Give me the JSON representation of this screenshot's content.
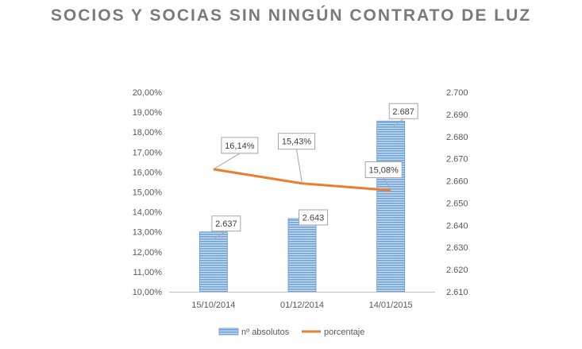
{
  "chart_data": {
    "type": "bar",
    "title": "SOCIOS Y SOCIAS SIN NINGÚN CONTRATO DE LUZ",
    "categories": [
      "15/10/2014",
      "01/12/2014",
      "14/01/2015"
    ],
    "series": [
      {
        "name": "nº absolutos",
        "kind": "bar",
        "axis": "right",
        "values": [
          2637,
          2643,
          2687
        ],
        "labels": [
          "2.637",
          "2.643",
          "2.687"
        ],
        "color": "#7fb0de"
      },
      {
        "name": "porcentaje",
        "kind": "line",
        "axis": "left",
        "values": [
          16.14,
          15.43,
          15.08
        ],
        "labels": [
          "16,14%",
          "15,43%",
          "15,08%"
        ],
        "color": "#ed7d31"
      }
    ],
    "y_left": {
      "min": 10,
      "max": 20,
      "step": 1,
      "tick_labels": [
        "10,00%",
        "11,00%",
        "12,00%",
        "13,00%",
        "14,00%",
        "15,00%",
        "16,00%",
        "17,00%",
        "18,00%",
        "19,00%",
        "20,00%"
      ]
    },
    "y_right": {
      "min": 2610,
      "max": 2700,
      "step": 10,
      "tick_labels": [
        "2.610",
        "2.620",
        "2.630",
        "2.640",
        "2.650",
        "2.660",
        "2.670",
        "2.680",
        "2.690",
        "2.700"
      ]
    },
    "grid": false,
    "legend": "bottom"
  }
}
